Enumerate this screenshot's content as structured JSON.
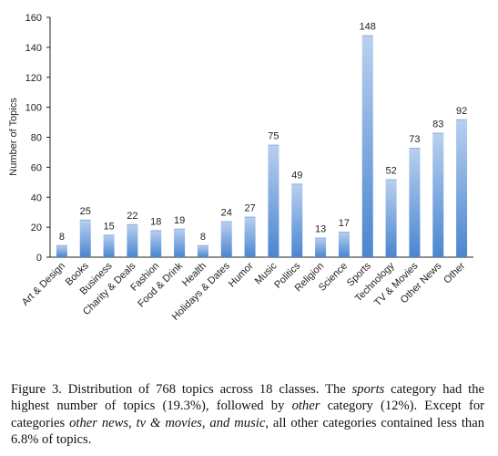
{
  "chart_data": {
    "type": "bar",
    "ylabel": "Number of Topics",
    "xlabel": "",
    "ylim": [
      0,
      160
    ],
    "yticks": [
      0,
      20,
      40,
      60,
      80,
      100,
      120,
      140,
      160
    ],
    "grid": false,
    "categories": [
      "Art & Design",
      "Books",
      "Business",
      "Charity & Deals",
      "Fashion",
      "Food & Drink",
      "Health",
      "Holidays & Dates",
      "Humor",
      "Music",
      "Politics",
      "Religion",
      "Science",
      "Sports",
      "Technology",
      "TV & Movies",
      "Other News",
      "Other"
    ],
    "values": [
      8,
      25,
      15,
      22,
      18,
      19,
      8,
      24,
      27,
      75,
      49,
      13,
      17,
      148,
      52,
      73,
      83,
      92
    ],
    "colors": {
      "bar_top": "#b9d0ef",
      "bar_bottom": "#4a86d0",
      "axis": "#222222"
    }
  },
  "caption": {
    "prefix": "Figure 3.   Distribution of 768 topics across 18 classes. The ",
    "em1": "sports",
    "mid1": " category had the highest number of topics (19.3%), followed by ",
    "em2": "other",
    "mid2": " category (12%). Except for categories ",
    "em3": "other news, tv & movies, and music",
    "suffix": ", all other categories contained less than 6.8% of topics."
  }
}
